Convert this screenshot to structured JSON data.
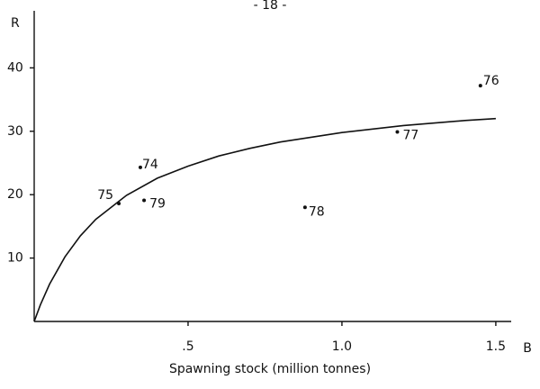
{
  "page_header": "- 18 -",
  "chart_data": {
    "type": "scatter",
    "y_axis_label": "R",
    "x_axis_end_label": "B",
    "x_axis_label": "Spawning stock (million tonnes)",
    "x": [
      0.345,
      0.275,
      0.357,
      0.88,
      1.18,
      1.45
    ],
    "y": [
      24.3,
      18.6,
      19.1,
      18.0,
      29.9,
      37.2
    ],
    "labels": [
      "74",
      "75",
      "79",
      "78",
      "77",
      "76"
    ],
    "color": "#111111",
    "curve": {
      "x": [
        0,
        0.02,
        0.05,
        0.1,
        0.15,
        0.2,
        0.3,
        0.4,
        0.5,
        0.6,
        0.7,
        0.8,
        1.0,
        1.2,
        1.4,
        1.5
      ],
      "y": [
        0,
        2.6,
        5.9,
        10.2,
        13.5,
        16.1,
        19.9,
        22.6,
        24.5,
        26.1,
        27.3,
        28.3,
        29.8,
        30.9,
        31.7,
        32.0
      ]
    },
    "xlim": [
      0,
      1.55
    ],
    "ylim": [
      0,
      49
    ],
    "xticks": [
      {
        "value": 0.5,
        "label": ".5"
      },
      {
        "value": 1.0,
        "label": "1.0"
      },
      {
        "value": 1.5,
        "label": "1.5"
      }
    ],
    "yticks": [
      10,
      20,
      30,
      40
    ]
  }
}
